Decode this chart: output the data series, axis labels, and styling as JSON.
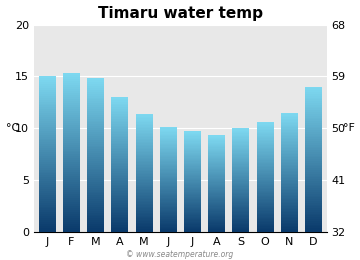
{
  "title": "Timaru water temp",
  "months": [
    "J",
    "F",
    "M",
    "A",
    "M",
    "J",
    "J",
    "A",
    "S",
    "O",
    "N",
    "D"
  ],
  "values_c": [
    15.0,
    15.3,
    14.8,
    13.0,
    11.4,
    10.1,
    9.7,
    9.3,
    10.0,
    10.6,
    11.5,
    14.0
  ],
  "ylim_c": [
    0,
    20
  ],
  "yticks_c": [
    0,
    5,
    10,
    15,
    20
  ],
  "yticks_f": [
    32,
    41,
    50,
    59,
    68
  ],
  "ylabel_left": "°C",
  "ylabel_right": "°F",
  "bar_color_bottom": "#0a3a6b",
  "bar_color_top": "#7dd8f0",
  "background_color": "#ffffff",
  "plot_bg_color": "#e8e8e8",
  "title_fontsize": 11,
  "axis_fontsize": 8,
  "tick_fontsize": 8,
  "watermark": "© www.seatemperature.org",
  "bar_width": 0.7
}
